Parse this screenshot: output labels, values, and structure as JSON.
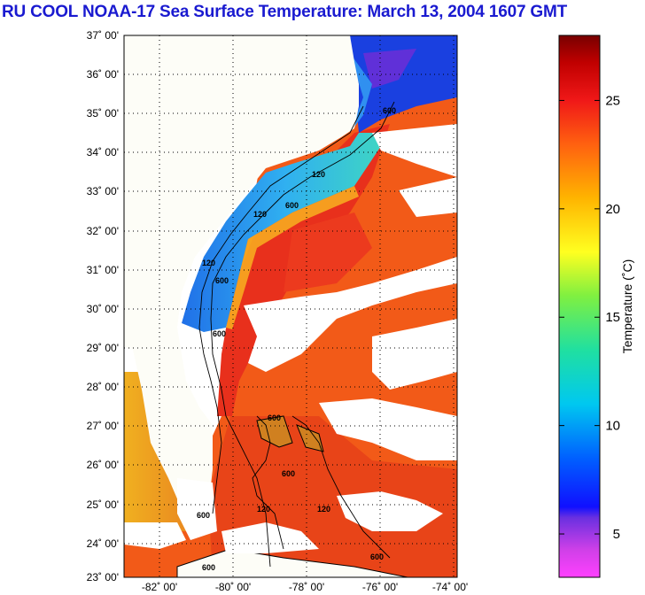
{
  "title": "RU COOL  NOAA-17  Sea Surface Temperature:  March 13, 2004 1607 GMT",
  "latitude_ticks": [
    "37˚ 00'",
    "36˚ 00'",
    "35˚ 00'",
    "34˚ 00'",
    "33˚ 00'",
    "32˚ 00'",
    "31˚ 00'",
    "30˚ 00'",
    "29˚ 00'",
    "28˚ 00'",
    "27˚ 00'",
    "26˚ 00'",
    "25˚ 00'",
    "24˚ 00'",
    "23˚ 00'"
  ],
  "longitude_ticks": [
    "-82˚ 00'",
    "-80˚ 00'",
    "-78˚ 00'",
    "-76˚ 00'",
    "-74˚ 00'"
  ],
  "colorbar": {
    "label": "Temperature (˚C)",
    "tick_labels": [
      "25",
      "20",
      "15",
      "10",
      "5"
    ],
    "ticks": [
      25,
      20,
      15,
      10,
      5
    ],
    "range": [
      3,
      28
    ]
  },
  "contour_labels": [
    "600",
    "120",
    "600",
    "120",
    "600",
    "120",
    "600",
    "600",
    "600",
    "120",
    "600",
    "600",
    "600",
    "120"
  ],
  "colors": {
    "title": "#1a1ad0",
    "land": "#fdfdf7",
    "cloud": "#ffffff",
    "gulf_stream": "#e8321e",
    "sargasso": "#f05a1a",
    "shelf": "#30a0e8",
    "cold_nearshore": "#1040e0",
    "florida_gulf": "#e0a020"
  }
}
